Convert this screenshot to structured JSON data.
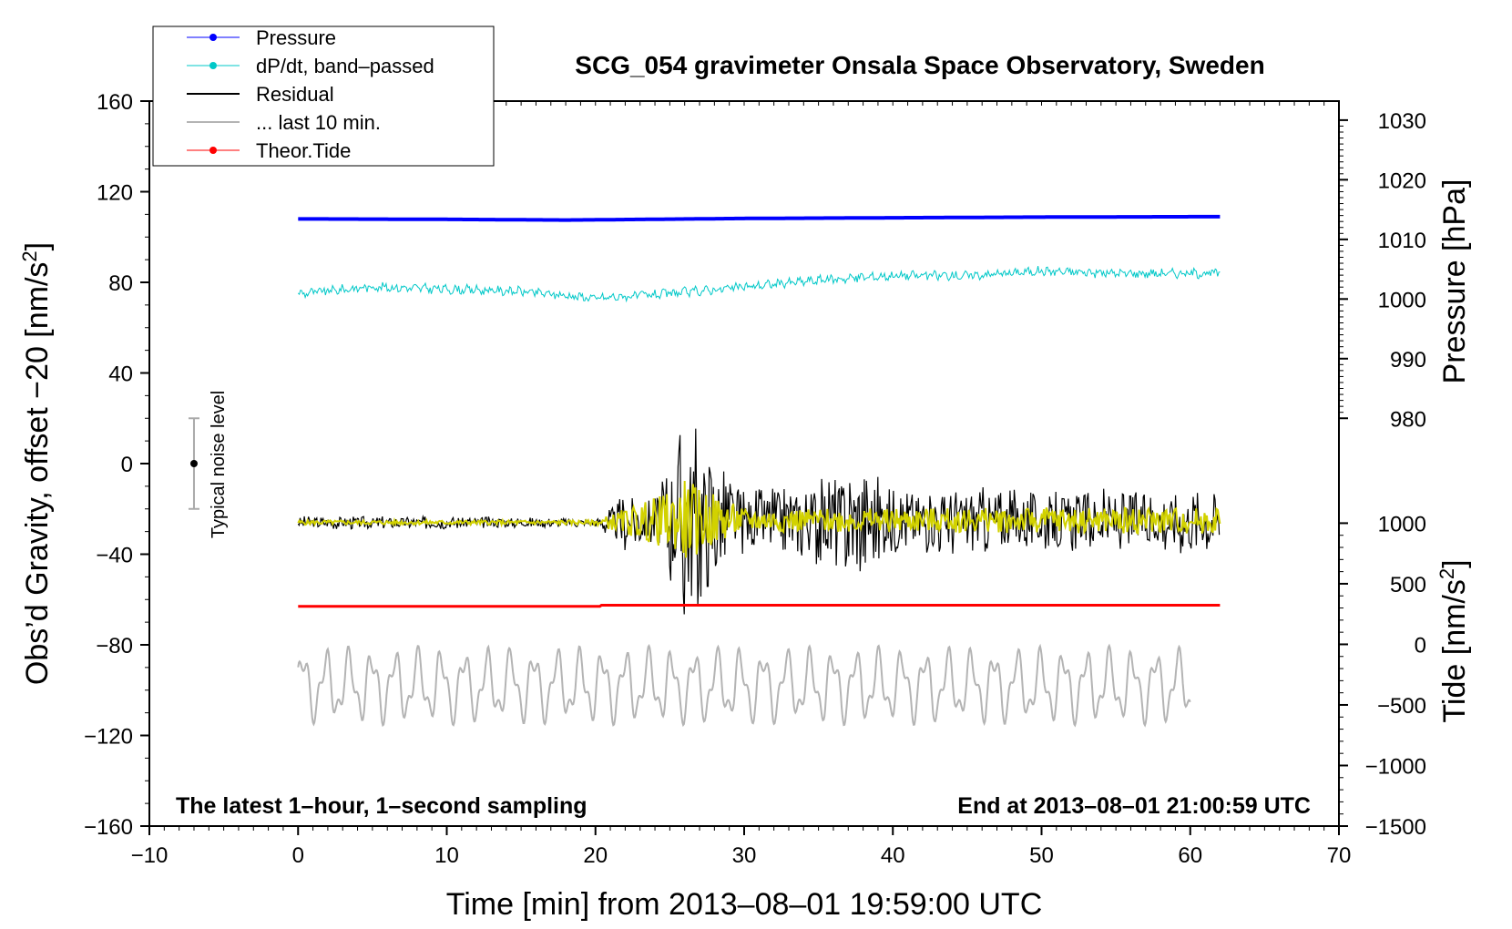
{
  "chart_data": {
    "type": "line",
    "title": "SCG_054 gravimeter Onsala Space Observatory, Sweden",
    "xlabel": "Time [min] from 2013–08–01 19:59:00 UTC",
    "ylabel_left": "Obs’d Gravity, offset −20 [nm/s",
    "ylabel_left_sup": "2",
    "ylabel_left_end": "]",
    "ylabel_right_pressure": "Pressure [hPa]",
    "ylabel_right_tide": "Tide [nm/s",
    "ylabel_right_tide_sup": "2",
    "ylabel_right_tide_end": "]",
    "xlim": [
      -10,
      70
    ],
    "ylim": [
      -160,
      160
    ],
    "xticks": [
      -10,
      0,
      10,
      20,
      30,
      40,
      50,
      60,
      70
    ],
    "xtick_labels": [
      "−10",
      "0",
      "10",
      "20",
      "30",
      "40",
      "50",
      "60",
      "70"
    ],
    "yticks": [
      -160,
      -120,
      -80,
      -40,
      0,
      40,
      80,
      120,
      160
    ],
    "ytick_labels": [
      "−160",
      "−120",
      "−80",
      "−40",
      "0",
      "40",
      "80",
      "120",
      "160"
    ],
    "pressure_axis": {
      "ticks": [
        980,
        990,
        1000,
        1010,
        1020,
        1030
      ],
      "tick_labels": [
        "980",
        "990",
        "1000",
        "1010",
        "1020",
        "1030"
      ],
      "mapping": {
        "hpa": [
          980,
          1030
        ],
        "gravity": [
          20,
          151.6
        ]
      }
    },
    "tide_axis": {
      "ticks": [
        -1500,
        -1000,
        -500,
        0,
        500,
        1000
      ],
      "tick_labels": [
        "−1500",
        "−1000",
        "−500",
        "0",
        "500",
        "1000"
      ],
      "mapping": {
        "tide": [
          -1500,
          1000
        ],
        "gravity": [
          -160,
          -26.3
        ]
      }
    },
    "noise_bar": {
      "label": "Typical noise level",
      "x": -7,
      "y": 0,
      "low": -20,
      "high": 20
    },
    "bottom_left_note": "The latest 1–hour, 1–second sampling",
    "bottom_right_note": "End at 2013–08–01 21:00:59 UTC",
    "legend": [
      {
        "label": "Pressure",
        "color": "#0000ff",
        "style": "line-dot"
      },
      {
        "label": "dP/dt, band–passed",
        "color": "#00c8c8",
        "style": "line-dot"
      },
      {
        "label": "Residual",
        "color": "#000000",
        "style": "line"
      },
      {
        "label": "... last 10 min.",
        "color": "#b4b4b4",
        "style": "line"
      },
      {
        "label": "Theor.Tide",
        "color": "#ff0000",
        "style": "line-dot"
      }
    ],
    "series": [
      {
        "name": "Pressure",
        "color": "#0000ff",
        "x": [
          0,
          10,
          18,
          20,
          30,
          40,
          50,
          62
        ],
        "y": [
          108,
          107.8,
          107.5,
          107.6,
          108.2,
          108.5,
          108.8,
          109
        ]
      },
      {
        "name": "dP/dt, band–passed",
        "color": "#00c8c8",
        "x": [
          0,
          5,
          10,
          15,
          20,
          25,
          30,
          35,
          40,
          45,
          50,
          55,
          62
        ],
        "y": [
          75,
          78,
          77,
          76,
          73,
          75,
          78,
          81,
          83,
          83,
          85,
          84,
          84
        ]
      },
      {
        "name": "Residual",
        "color": "#000000",
        "x": [
          0,
          10,
          20,
          22,
          24,
          25.5,
          26,
          30,
          35,
          37,
          37.5,
          40,
          45,
          50,
          55,
          62
        ],
        "y": [
          -26,
          -26,
          -26,
          -26,
          -25,
          -25,
          -25,
          -25,
          -25,
          -25,
          -25,
          -25,
          -25,
          -25,
          -25,
          -25
        ],
        "amplitude": [
          3,
          3,
          2,
          14,
          12,
          40,
          52,
          14,
          20,
          26,
          30,
          16,
          16,
          14,
          14,
          16
        ]
      },
      {
        "name": "Residual (smoothed)",
        "color": "#d2d200",
        "x": [
          0,
          20,
          25.5,
          26,
          30,
          62
        ],
        "y": [
          -26,
          -26,
          -25,
          -25,
          -25,
          -25
        ],
        "amplitude": [
          1,
          1,
          14,
          18,
          5,
          6
        ]
      },
      {
        "name": "... last 10 min.",
        "color": "#b4b4b4",
        "x": [
          0,
          60
        ],
        "y": [
          -98,
          -98
        ],
        "amplitude": [
          16,
          16
        ]
      },
      {
        "name": "Theor.Tide",
        "color": "#ff0000",
        "x": [
          0,
          20.4,
          20.4,
          62
        ],
        "y": [
          -63,
          -63,
          -62.5,
          -62.5
        ]
      }
    ]
  }
}
